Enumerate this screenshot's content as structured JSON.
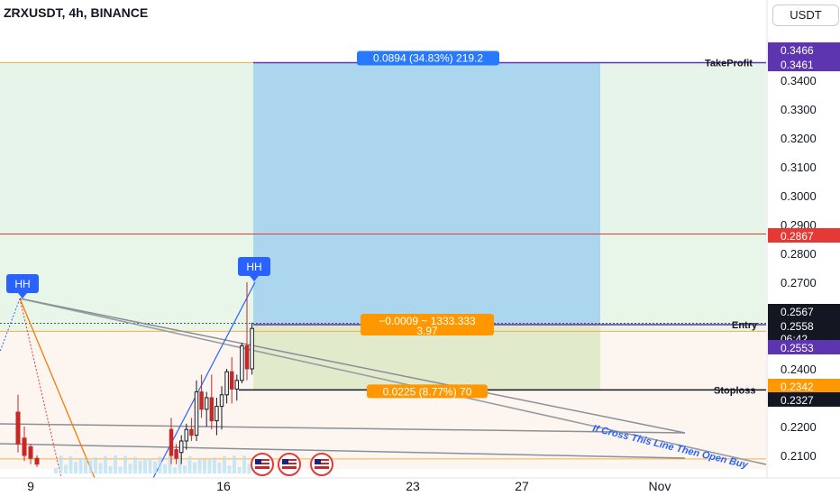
{
  "header": {
    "symbol_title": "ZRXUSDT, 4h, BINANCE",
    "unit_button": "USDT"
  },
  "chart_data": {
    "type": "candlestick",
    "y_ticks": [
      "0.3400",
      "0.3300",
      "0.3200",
      "0.3100",
      "0.3000",
      "0.2900",
      "0.2800",
      "0.2700",
      "0.2400",
      "0.2200",
      "0.2100"
    ],
    "x_ticks": [
      "9",
      "16",
      "23",
      "27",
      "Nov"
    ],
    "price_labels": {
      "top": "0.3466",
      "take_profit": "0.3461",
      "red_level": "0.2867",
      "high": "0.2567",
      "last": "0.2558",
      "countdown": "06:42",
      "entry": "0.2553",
      "stop_orange": "0.2342",
      "stop": "0.2327"
    },
    "levels": {
      "take_profit": 0.3461,
      "red_level": 0.2867,
      "entry": 0.2553,
      "stop": 0.2327,
      "last": 0.2558,
      "orange_line": 0.253
    },
    "line_labels": {
      "take_profit": "TakeProfit",
      "entry": "Entry",
      "stoploss": "Stoploss"
    },
    "position_boxes": {
      "target_text": "0.0894 (34.83%) 219.2",
      "center_text_line1": "−0.0009 ~ 1333.333",
      "center_text_line2": "3.97",
      "stop_text": "0.0225 (8.77%) 70"
    },
    "markers": [
      "HH",
      "HH"
    ],
    "annotation": "If Cross This Line Then Open Buy",
    "candles": [
      {
        "o": 0.219,
        "h": 0.223,
        "l": 0.207,
        "c": 0.21
      },
      {
        "o": 0.212,
        "h": 0.214,
        "l": 0.207,
        "c": 0.209
      },
      {
        "o": 0.211,
        "h": 0.217,
        "l": 0.207,
        "c": 0.215
      },
      {
        "o": 0.215,
        "h": 0.221,
        "l": 0.212,
        "c": 0.219
      },
      {
        "o": 0.219,
        "h": 0.223,
        "l": 0.215,
        "c": 0.217
      },
      {
        "o": 0.217,
        "h": 0.236,
        "l": 0.215,
        "c": 0.232
      },
      {
        "o": 0.232,
        "h": 0.238,
        "l": 0.223,
        "c": 0.226
      },
      {
        "o": 0.226,
        "h": 0.232,
        "l": 0.22,
        "c": 0.23
      },
      {
        "o": 0.23,
        "h": 0.238,
        "l": 0.219,
        "c": 0.222
      },
      {
        "o": 0.222,
        "h": 0.23,
        "l": 0.217,
        "c": 0.227
      },
      {
        "o": 0.227,
        "h": 0.234,
        "l": 0.219,
        "c": 0.231
      },
      {
        "o": 0.231,
        "h": 0.24,
        "l": 0.228,
        "c": 0.239
      },
      {
        "o": 0.239,
        "h": 0.244,
        "l": 0.228,
        "c": 0.233
      },
      {
        "o": 0.233,
        "h": 0.238,
        "l": 0.229,
        "c": 0.236
      },
      {
        "o": 0.236,
        "h": 0.249,
        "l": 0.235,
        "c": 0.248
      },
      {
        "o": 0.248,
        "h": 0.27,
        "l": 0.236,
        "c": 0.24
      },
      {
        "o": 0.24,
        "h": 0.256,
        "l": 0.238,
        "c": 0.254
      }
    ],
    "left_candles": [
      {
        "o": 0.225,
        "h": 0.231,
        "l": 0.211,
        "c": 0.214
      },
      {
        "o": 0.216,
        "h": 0.22,
        "l": 0.208,
        "c": 0.21
      },
      {
        "o": 0.213,
        "h": 0.214,
        "l": 0.207,
        "c": 0.209
      },
      {
        "o": 0.209,
        "h": 0.21,
        "l": 0.206,
        "c": 0.207
      }
    ],
    "grid": false
  }
}
